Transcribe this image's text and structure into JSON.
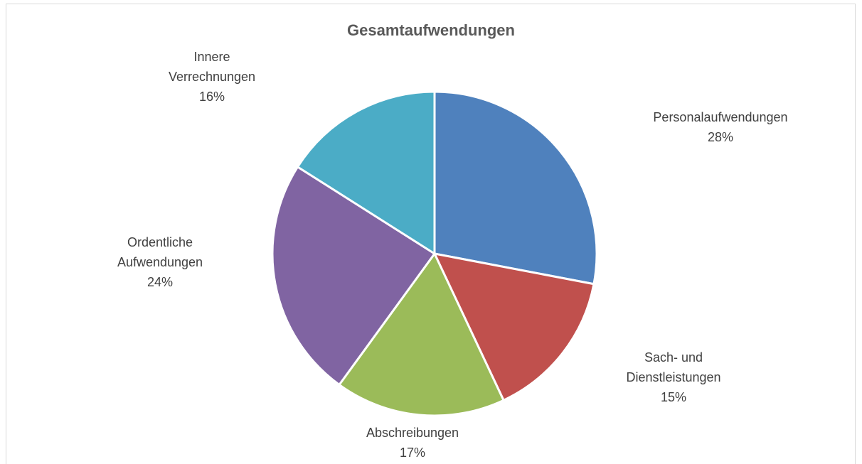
{
  "chart_data": {
    "type": "pie",
    "title": "Gesamtaufwendungen",
    "categories": [
      "Personalaufwendungen",
      "Sach- und Dienstleistungen",
      "Abschreibungen",
      "Ordentliche Aufwendungen",
      "Innere Verrechnungen"
    ],
    "values": [
      28,
      15,
      17,
      24,
      16
    ],
    "value_labels": [
      "28%",
      "15%",
      "17%",
      "24%",
      "16%"
    ],
    "colors": [
      "#4f81bd",
      "#c0504d",
      "#9bbb59",
      "#8064a2",
      "#4bacc6"
    ]
  }
}
